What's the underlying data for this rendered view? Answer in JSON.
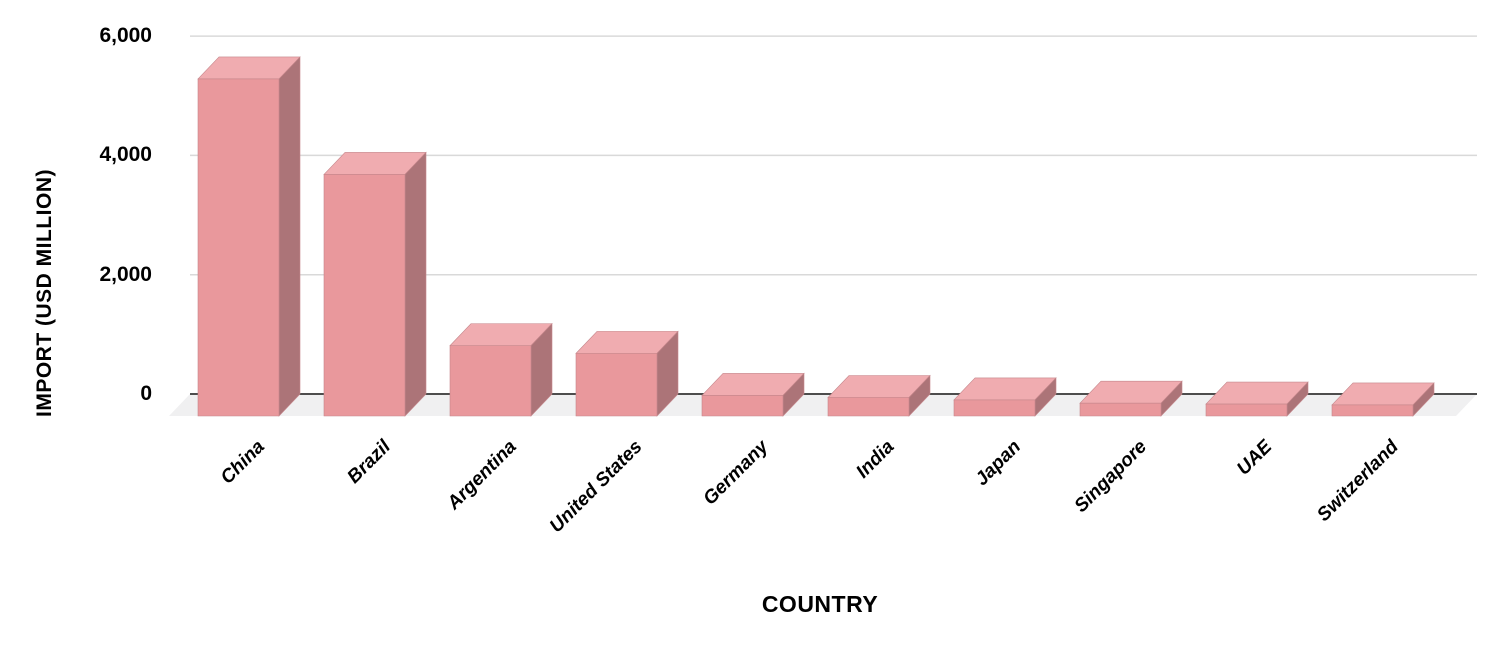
{
  "chart_data": {
    "type": "bar",
    "variant": "3d-column",
    "title": "",
    "xlabel": "COUNTRY",
    "ylabel": "IMPORT (USD MILLION)",
    "categories": [
      "China",
      "Brazil",
      "Argentina",
      "United States",
      "Germany",
      "India",
      "Japan",
      "Singapore",
      "UAE",
      "Switzerland"
    ],
    "values": [
      5650,
      4050,
      1180,
      1050,
      345,
      310,
      270,
      215,
      200,
      185
    ],
    "ylim": [
      0,
      6000
    ],
    "yticks": [
      {
        "value": 0,
        "label": "0"
      },
      {
        "value": 2000,
        "label": "2,000"
      },
      {
        "value": 4000,
        "label": "4,000"
      },
      {
        "value": 6000,
        "label": "6,000"
      }
    ],
    "grid": true,
    "legend": false,
    "colors": {
      "bar_front": "#E9989C",
      "bar_top": "#F0ACB0",
      "bar_side": "#AC7478",
      "bar_edge": "#C5868B",
      "gridline": "#D9D9D9",
      "axis_line": "#4D4D4D",
      "floor": "#F0F0F1",
      "background": "#FFFFFF",
      "text": "#000000"
    }
  }
}
